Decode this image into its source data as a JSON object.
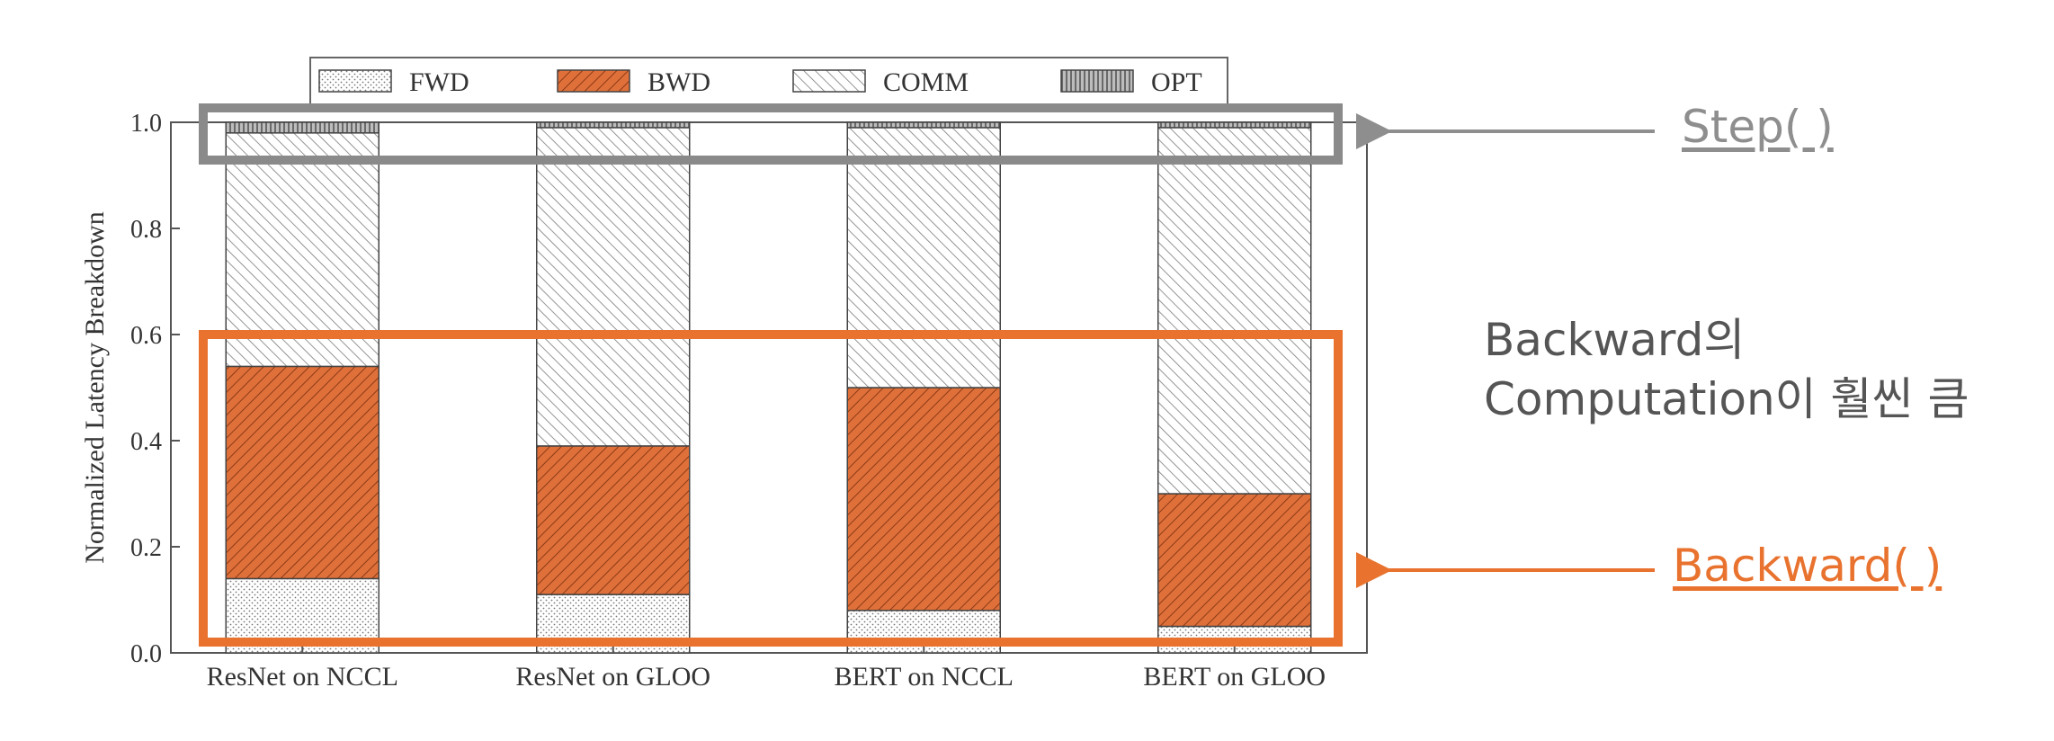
{
  "chart_data": {
    "type": "bar",
    "stacked": true,
    "categories": [
      "ResNet on NCCL",
      "ResNet on GLOO",
      "BERT on NCCL",
      "BERT on GLOO"
    ],
    "series": [
      {
        "name": "FWD",
        "values": [
          0.14,
          0.11,
          0.08,
          0.05
        ]
      },
      {
        "name": "BWD",
        "values": [
          0.4,
          0.28,
          0.42,
          0.25
        ]
      },
      {
        "name": "COMM",
        "values": [
          0.44,
          0.6,
          0.49,
          0.69
        ]
      },
      {
        "name": "OPT",
        "values": [
          0.02,
          0.01,
          0.01,
          0.01
        ]
      }
    ],
    "title": "",
    "xlabel": "",
    "ylabel": "Normalized Latency Breakdown",
    "ylim": [
      0,
      1.0
    ],
    "yticks": [
      "0.0",
      "0.2",
      "0.4",
      "0.6",
      "0.8",
      "1.0"
    ],
    "grid": false,
    "legend": "top-center",
    "colors": {
      "FWD": "#ffffff",
      "BWD": "#e0703a",
      "COMM": "#ffffff",
      "OPT": "#9a9a9a"
    }
  },
  "annotations": {
    "step_label": "Step( )",
    "backward_label": "Backward( )",
    "note_line1": "Backward의",
    "note_line2": "Computation이 훨씬 큼",
    "step_color": "#8e8e8e",
    "backward_color": "#e8722e"
  }
}
